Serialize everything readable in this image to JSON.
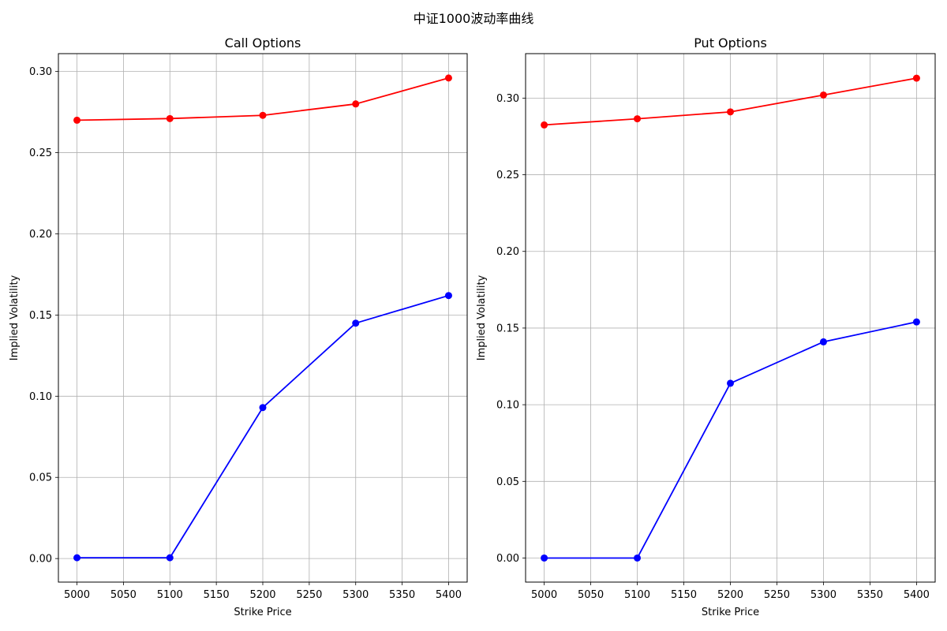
{
  "figure": {
    "title": "中证1000波动率曲线"
  },
  "chart_data": [
    {
      "type": "line",
      "title": "Call Options",
      "xlabel": "Strike Price",
      "ylabel": "Implied Volatility",
      "x": [
        5000,
        5100,
        5200,
        5300,
        5400
      ],
      "xticks": [
        5000,
        5050,
        5100,
        5150,
        5200,
        5250,
        5300,
        5350,
        5400
      ],
      "yticks": [
        0.0,
        0.05,
        0.1,
        0.15,
        0.2,
        0.25,
        0.3
      ],
      "xlim": [
        4980,
        5420
      ],
      "ylim": [
        -0.0145,
        0.311
      ],
      "grid": true,
      "series": [
        {
          "color": "#ff0000",
          "marker": "circle",
          "values": [
            0.27,
            0.271,
            0.273,
            0.28,
            0.296
          ]
        },
        {
          "color": "#0000ff",
          "marker": "circle",
          "values": [
            0.0005,
            0.0005,
            0.093,
            0.145,
            0.162
          ]
        }
      ]
    },
    {
      "type": "line",
      "title": "Put Options",
      "xlabel": "Strike Price",
      "ylabel": "Implied Volatility",
      "x": [
        5000,
        5100,
        5200,
        5300,
        5400
      ],
      "xticks": [
        5000,
        5050,
        5100,
        5150,
        5200,
        5250,
        5300,
        5350,
        5400
      ],
      "yticks": [
        0.0,
        0.05,
        0.1,
        0.15,
        0.2,
        0.25,
        0.3
      ],
      "xlim": [
        4980,
        5420
      ],
      "ylim": [
        -0.0157,
        0.329
      ],
      "grid": true,
      "series": [
        {
          "color": "#ff0000",
          "marker": "circle",
          "values": [
            0.2825,
            0.2865,
            0.291,
            0.302,
            0.313
          ]
        },
        {
          "color": "#0000ff",
          "marker": "circle",
          "values": [
            0.0,
            0.0,
            0.114,
            0.141,
            0.154
          ]
        }
      ]
    }
  ]
}
